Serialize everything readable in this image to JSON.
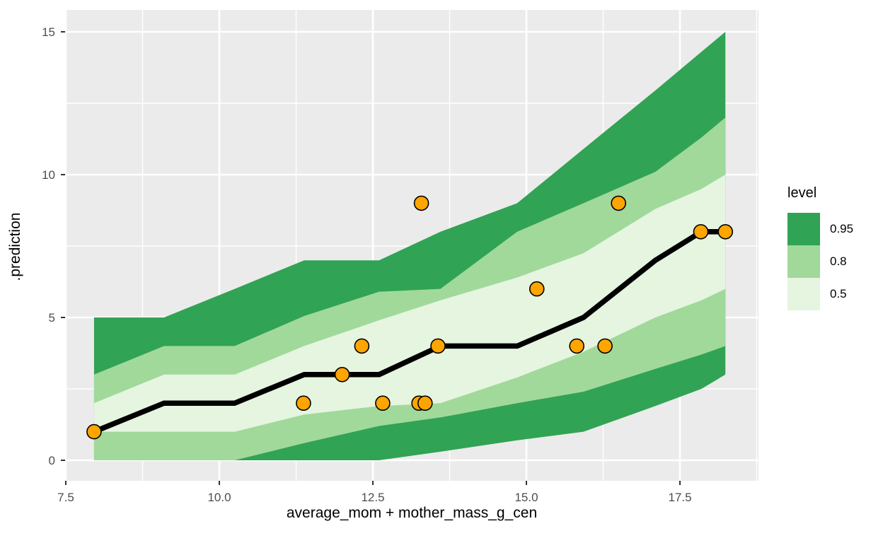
{
  "chart_data": {
    "type": "area",
    "description": "ggplot-style posterior prediction fan chart with median line and observed points",
    "xlabel": "average_mom + mother_mass_g_cen",
    "ylabel": ".prediction",
    "xlim": [
      7.49,
      18.72
    ],
    "ylim": [
      -0.72,
      15.77
    ],
    "grid": "on",
    "panel_bg": "#EBEBEB",
    "grid_color": "#FFFFFF",
    "tick_color": "#333333",
    "tick_label_color": "#4D4D4D",
    "x_axis": {
      "major_ticks": [
        7.5,
        10.0,
        12.5,
        15.0,
        17.5
      ],
      "major_labels": [
        "7.5",
        "10.0",
        "12.5",
        "15.0",
        "17.5"
      ],
      "minor_ticks": [
        8.75,
        11.25,
        13.75,
        16.25,
        18.75
      ]
    },
    "y_axis": {
      "major_ticks": [
        0,
        5,
        10,
        15
      ],
      "major_labels": [
        "0",
        "5",
        "10",
        "15"
      ],
      "minor_ticks": [
        2.5,
        7.5,
        12.5
      ]
    },
    "ribbon_x": [
      7.96,
      9.1,
      10.25,
      11.38,
      12.6,
      13.6,
      14.85,
      15.93,
      17.1,
      17.85,
      18.24
    ],
    "ribbons": [
      {
        "level": "0.95",
        "color": "#31A354",
        "upper": [
          5.0,
          5.0,
          6.0,
          7.0,
          7.0,
          8.0,
          9.0,
          10.9,
          12.95,
          14.3,
          15.0
        ],
        "lower": [
          0.0,
          0.0,
          0.0,
          0.0,
          0.0,
          0.3,
          0.7,
          1.0,
          1.9,
          2.5,
          3.0
        ]
      },
      {
        "level": "0.8",
        "color": "#A1D99B",
        "upper": [
          3.0,
          4.0,
          4.0,
          5.05,
          5.9,
          6.0,
          8.0,
          9.0,
          10.1,
          11.3,
          12.0
        ],
        "lower": [
          0.0,
          0.0,
          0.0,
          0.6,
          1.2,
          1.5,
          2.0,
          2.4,
          3.2,
          3.7,
          4.0
        ]
      },
      {
        "level": "0.5",
        "color": "#E5F5E0",
        "upper": [
          2.0,
          3.0,
          3.0,
          4.0,
          4.9,
          5.6,
          6.4,
          7.25,
          8.8,
          9.5,
          10.0
        ],
        "lower": [
          1.0,
          1.0,
          1.0,
          1.6,
          1.9,
          2.0,
          2.9,
          3.8,
          5.0,
          5.6,
          6.0
        ]
      }
    ],
    "median_line": {
      "color": "#000000",
      "y": [
        1,
        2,
        2,
        3,
        3,
        4,
        4,
        5,
        7,
        8,
        8
      ]
    },
    "points": {
      "fill": "#FFA500",
      "stroke": "#000000",
      "xy": [
        [
          7.96,
          1
        ],
        [
          11.37,
          2
        ],
        [
          12.0,
          3
        ],
        [
          12.32,
          4
        ],
        [
          12.66,
          2
        ],
        [
          13.25,
          2
        ],
        [
          13.35,
          2
        ],
        [
          13.29,
          9
        ],
        [
          13.56,
          4
        ],
        [
          15.17,
          6
        ],
        [
          15.82,
          4
        ],
        [
          16.28,
          4
        ],
        [
          16.5,
          9
        ],
        [
          17.84,
          8
        ],
        [
          18.24,
          8
        ]
      ]
    },
    "legend": {
      "title": "level",
      "position": "right",
      "entries": [
        {
          "label": "0.95",
          "color": "#31A354"
        },
        {
          "label": "0.8",
          "color": "#A1D99B"
        },
        {
          "label": "0.5",
          "color": "#E5F5E0"
        }
      ]
    }
  }
}
